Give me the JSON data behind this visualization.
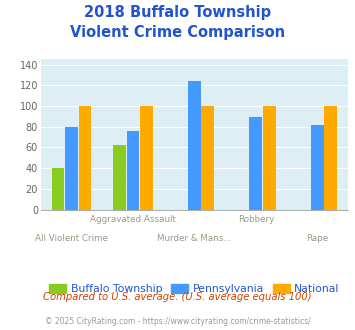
{
  "title_line1": "2018 Buffalo Township",
  "title_line2": "Violent Crime Comparison",
  "title_color": "#2255cc",
  "series": {
    "Buffalo Township": {
      "values": [
        40,
        62,
        null,
        null,
        null
      ],
      "color": "#88cc22"
    },
    "Pennsylvania": {
      "values": [
        80,
        76,
        124,
        89,
        82
      ],
      "color": "#4499ff"
    },
    "National": {
      "values": [
        100,
        100,
        100,
        100,
        100
      ],
      "color": "#ffaa00"
    }
  },
  "ylim": [
    0,
    145
  ],
  "yticks": [
    0,
    20,
    40,
    60,
    80,
    100,
    120,
    140
  ],
  "plot_bg_color": "#ddeef5",
  "bg_color": "#ffffff",
  "footer_text1": "Compared to U.S. average. (U.S. average equals 100)",
  "footer_text2": "© 2025 CityRating.com - https://www.cityrating.com/crime-statistics/",
  "footer_color1": "#cc4400",
  "footer_color2": "#999999",
  "legend_color": "#2255cc",
  "bar_width": 0.22,
  "xlim": [
    -0.5,
    4.5
  ],
  "xtick_positions": [
    0,
    1,
    2,
    3,
    4
  ],
  "xlabel_top": [
    "",
    "Aggravated Assault",
    "",
    "Robbery",
    ""
  ],
  "xlabel_bottom": [
    "All Violent Crime",
    "",
    "Murder & Mans...",
    "",
    "Rape"
  ],
  "xlabel_top_color": "#999988",
  "xlabel_bottom_color": "#999988"
}
